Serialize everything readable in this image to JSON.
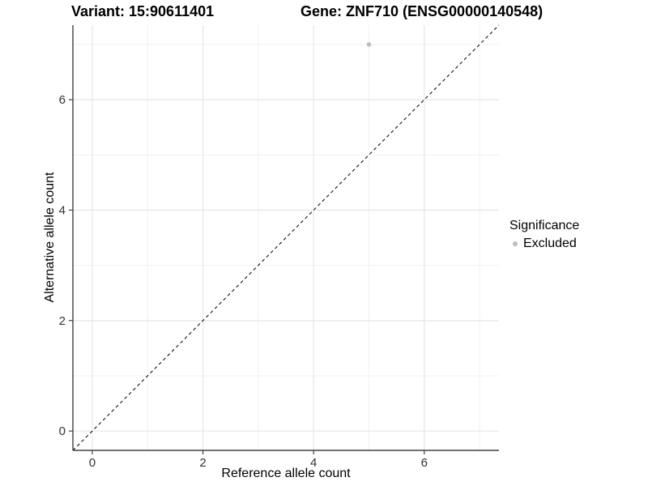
{
  "chart_data": {
    "type": "scatter",
    "title_left": "Variant: 15:90611401",
    "title_right": "Gene: ZNF710 (ENSG00000140548)",
    "xlabel": "Reference allele count",
    "ylabel": "Alternative allele count",
    "xlim": [
      -0.35,
      7.35
    ],
    "ylim": [
      -0.35,
      7.35
    ],
    "x_major_ticks": [
      0,
      2,
      4,
      6
    ],
    "y_major_ticks": [
      0,
      2,
      4,
      6
    ],
    "x_minor_ticks": [
      1,
      3,
      5,
      7
    ],
    "y_minor_ticks": [
      1,
      3,
      5,
      7
    ],
    "grid": true,
    "series": [
      {
        "name": "Excluded",
        "color": "#bdbdbd",
        "points": [
          {
            "x": 5,
            "y": 7
          }
        ]
      }
    ],
    "reference_line": {
      "type": "identity",
      "style": "dashed",
      "color": "#111111"
    },
    "legend": {
      "title": "Significance",
      "position": "right",
      "items": [
        {
          "label": "Excluded",
          "color": "#bdbdbd"
        }
      ]
    },
    "colors": {
      "grid_major": "#e4e4e4",
      "grid_minor": "#f1f1f1",
      "axis_line": "#404040",
      "tick_label": "#333333"
    }
  }
}
